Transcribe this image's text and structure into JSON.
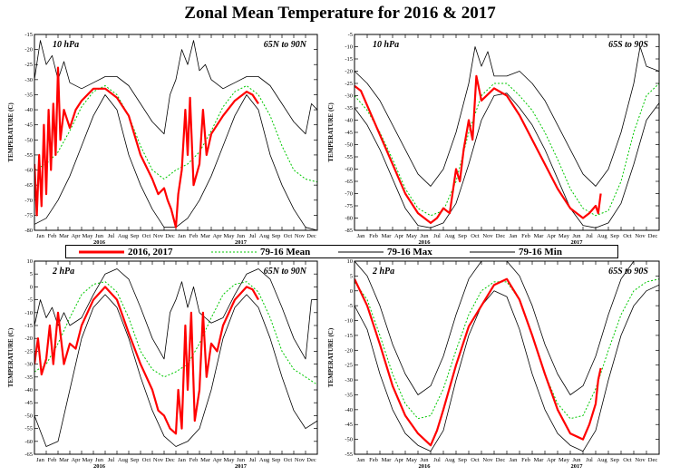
{
  "title": "Zonal Mean Temperature for 2016 & 2017",
  "legend": {
    "items": [
      {
        "label": "2016, 2017",
        "color": "#ff0000",
        "style": "thick"
      },
      {
        "label": "79-16 Mean",
        "color": "#00c800",
        "style": "dashed"
      },
      {
        "label": "79-16 Max",
        "color": "#000000",
        "style": "thin"
      },
      {
        "label": "79-16 Min",
        "color": "#000000",
        "style": "thin"
      }
    ]
  },
  "months": [
    "Jan",
    "Feb",
    "Mar",
    "Apr",
    "May",
    "Jun",
    "Jul",
    "Aug",
    "Sep",
    "Oct",
    "Nov",
    "Dec",
    "Jan",
    "Feb",
    "Mar",
    "Apr",
    "May",
    "Jun",
    "Jul",
    "Aug",
    "Sep",
    "Oct",
    "Nov",
    "Dec"
  ],
  "year_labels": [
    "2016",
    "2017"
  ],
  "chart_data": [
    {
      "type": "line",
      "pressure": "10 hPa",
      "region": "65N to 90N",
      "ylabel": "TEMPERATURE (C)",
      "ylim": [
        -80,
        -15
      ],
      "yticks": [
        -15,
        -20,
        -25,
        -30,
        -35,
        -40,
        -45,
        -50,
        -55,
        -60,
        -65,
        -70,
        -75,
        -80
      ],
      "xlim": [
        0,
        24
      ],
      "series": [
        {
          "name": "79-16 Mean",
          "x": [
            0,
            1,
            2,
            3,
            4,
            5,
            6,
            7,
            8,
            9,
            10,
            11,
            12,
            13,
            14,
            15,
            16,
            17,
            18,
            19,
            20,
            21,
            22,
            23,
            24
          ],
          "y": [
            -60,
            -58,
            -54,
            -47,
            -39,
            -34,
            -32,
            -35,
            -42,
            -52,
            -60,
            -63,
            -60,
            -58,
            -54,
            -47,
            -39,
            -34,
            -32,
            -35,
            -42,
            -52,
            -60,
            -63,
            -64
          ]
        },
        {
          "name": "79-16 Max",
          "x": [
            0,
            0.5,
            1,
            1.5,
            2,
            2.5,
            3,
            4,
            5,
            6,
            7,
            8,
            9,
            10,
            11,
            11.5,
            12,
            12.5,
            13,
            13.5,
            14,
            14.5,
            15,
            16,
            17,
            18,
            19,
            20,
            21,
            22,
            23,
            23.5,
            24
          ],
          "y": [
            -30,
            -17,
            -25,
            -22,
            -30,
            -24,
            -31,
            -33,
            -31,
            -29,
            -29,
            -32,
            -38,
            -44,
            -48,
            -35,
            -30,
            -20,
            -25,
            -17,
            -27,
            -25,
            -30,
            -33,
            -31,
            -29,
            -29,
            -32,
            -38,
            -44,
            -48,
            -38,
            -40
          ]
        },
        {
          "name": "79-16 Min",
          "x": [
            0,
            1,
            2,
            3,
            4,
            5,
            6,
            7,
            8,
            9,
            10,
            11,
            12,
            13,
            14,
            15,
            16,
            17,
            18,
            19,
            20,
            21,
            22,
            23,
            24
          ],
          "y": [
            -78,
            -76,
            -70,
            -62,
            -52,
            -42,
            -35,
            -40,
            -55,
            -65,
            -73,
            -79,
            -79,
            -76,
            -70,
            -62,
            -52,
            -42,
            -35,
            -40,
            -55,
            -65,
            -73,
            -79,
            -80
          ]
        },
        {
          "name": "2016, 2017",
          "x": [
            0,
            0.2,
            0.4,
            0.6,
            0.8,
            1,
            1.2,
            1.4,
            1.6,
            1.8,
            2,
            2.2,
            2.5,
            3,
            3.5,
            4,
            5,
            6,
            7,
            8,
            9,
            10,
            10.5,
            11,
            11.3,
            11.6,
            12,
            12.2,
            12.5,
            12.8,
            13,
            13.2,
            13.5,
            14,
            14.3,
            14.6,
            15,
            15.5,
            16,
            17,
            18,
            18.5,
            19
          ],
          "y": [
            -58,
            -75,
            -55,
            -72,
            -45,
            -68,
            -40,
            -60,
            -38,
            -55,
            -26,
            -50,
            -40,
            -46,
            -40,
            -37,
            -33,
            -33,
            -36,
            -42,
            -55,
            -63,
            -68,
            -66,
            -70,
            -73,
            -79,
            -68,
            -60,
            -40,
            -55,
            -36,
            -65,
            -58,
            -40,
            -55,
            -48,
            -45,
            -42,
            -37,
            -34,
            -35,
            -38
          ]
        }
      ]
    },
    {
      "type": "line",
      "pressure": "10 hPa",
      "region": "65S to 90S",
      "ylabel": "TEMPERATURE (C)",
      "ylim": [
        -85,
        -5
      ],
      "yticks": [
        -5,
        -10,
        -15,
        -20,
        -25,
        -30,
        -35,
        -40,
        -45,
        -50,
        -55,
        -60,
        -65,
        -70,
        -75,
        -80,
        -85
      ],
      "xlim": [
        0,
        24
      ],
      "series": [
        {
          "name": "79-16 Mean",
          "x": [
            0,
            1,
            2,
            3,
            4,
            5,
            6,
            7,
            8,
            9,
            10,
            11,
            12,
            13,
            14,
            15,
            16,
            17,
            18,
            19,
            20,
            21,
            22,
            23,
            24
          ],
          "y": [
            -30,
            -36,
            -45,
            -56,
            -68,
            -76,
            -79,
            -77,
            -65,
            -45,
            -30,
            -25,
            -25,
            -30,
            -36,
            -45,
            -56,
            -68,
            -76,
            -79,
            -77,
            -65,
            -45,
            -30,
            -25
          ]
        },
        {
          "name": "79-16 Max",
          "x": [
            0,
            1,
            2,
            3,
            4,
            5,
            6,
            7,
            8,
            9,
            9.5,
            10,
            10.5,
            11,
            12,
            13,
            14,
            15,
            16,
            17,
            18,
            19,
            20,
            21,
            22,
            22.5,
            23,
            24
          ],
          "y": [
            -20,
            -25,
            -32,
            -42,
            -52,
            -62,
            -67,
            -60,
            -45,
            -25,
            -10,
            -18,
            -12,
            -22,
            -22,
            -20,
            -25,
            -32,
            -42,
            -52,
            -62,
            -67,
            -60,
            -45,
            -25,
            -10,
            -18,
            -20
          ]
        },
        {
          "name": "79-16 Min",
          "x": [
            0,
            1,
            2,
            3,
            4,
            5,
            6,
            7,
            8,
            9,
            10,
            11,
            12,
            13,
            14,
            15,
            16,
            17,
            18,
            19,
            20,
            21,
            22,
            23,
            24
          ],
          "y": [
            -35,
            -42,
            -52,
            -64,
            -76,
            -83,
            -84,
            -82,
            -74,
            -58,
            -40,
            -30,
            -29,
            -35,
            -42,
            -52,
            -64,
            -76,
            -83,
            -84,
            -82,
            -74,
            -58,
            -40,
            -33
          ]
        },
        {
          "name": "2016, 2017",
          "x": [
            0,
            0.5,
            1,
            2,
            3,
            4,
            5,
            6,
            6.5,
            7,
            7.5,
            8,
            8.3,
            8.6,
            9,
            9.3,
            9.6,
            10,
            11,
            12,
            13,
            14,
            15,
            16,
            17,
            18,
            18.5,
            19,
            19.2,
            19.4
          ],
          "y": [
            -26,
            -28,
            -34,
            -46,
            -58,
            -70,
            -78,
            -82,
            -80,
            -76,
            -78,
            -60,
            -65,
            -52,
            -40,
            -48,
            -22,
            -32,
            -27,
            -30,
            -38,
            -48,
            -58,
            -68,
            -76,
            -80,
            -78,
            -75,
            -78,
            -70
          ]
        }
      ]
    },
    {
      "type": "line",
      "pressure": "2 hPa",
      "region": "65N to 90N",
      "ylabel": "TEMPERATURE (C)",
      "ylim": [
        -65,
        10
      ],
      "yticks": [
        10,
        5,
        0,
        -5,
        -10,
        -15,
        -20,
        -25,
        -30,
        -35,
        -40,
        -45,
        -50,
        -55,
        -60,
        -65
      ],
      "xlim": [
        0,
        24
      ],
      "series": [
        {
          "name": "79-16 Mean",
          "x": [
            0,
            1,
            2,
            3,
            4,
            5,
            6,
            7,
            8,
            9,
            10,
            11,
            12,
            13,
            14,
            15,
            16,
            17,
            18,
            19,
            20,
            21,
            22,
            23,
            24
          ],
          "y": [
            -33,
            -30,
            -22,
            -12,
            -3,
            1,
            2,
            -2,
            -12,
            -25,
            -32,
            -35,
            -33,
            -30,
            -22,
            -12,
            -3,
            1,
            2,
            -2,
            -12,
            -25,
            -32,
            -35,
            -38
          ]
        },
        {
          "name": "79-16 Max",
          "x": [
            0,
            0.5,
            1,
            1.5,
            2,
            2.5,
            3,
            4,
            5,
            6,
            7,
            8,
            9,
            10,
            11,
            11.5,
            12,
            12.5,
            13,
            13.5,
            14,
            14.5,
            15,
            16,
            17,
            18,
            19,
            20,
            21,
            22,
            23,
            23.5,
            24
          ],
          "y": [
            -15,
            -5,
            -12,
            -8,
            -15,
            -10,
            -15,
            -12,
            -3,
            5,
            7,
            3,
            -8,
            -20,
            -28,
            -10,
            -5,
            2,
            -8,
            0,
            -10,
            -12,
            -14,
            -12,
            -3,
            5,
            7,
            3,
            -8,
            -20,
            -28,
            -5,
            -5
          ]
        },
        {
          "name": "79-16 Min",
          "x": [
            0,
            1,
            2,
            3,
            4,
            5,
            6,
            7,
            8,
            9,
            10,
            11,
            12,
            13,
            14,
            15,
            16,
            17,
            18,
            19,
            20,
            21,
            22,
            23,
            24
          ],
          "y": [
            -50,
            -62,
            -60,
            -40,
            -20,
            -8,
            -3,
            -8,
            -20,
            -35,
            -48,
            -58,
            -62,
            -60,
            -55,
            -40,
            -20,
            -8,
            -3,
            -8,
            -20,
            -35,
            -48,
            -55,
            -52
          ]
        },
        {
          "name": "2016, 2017",
          "x": [
            0,
            0.3,
            0.6,
            1,
            1.3,
            1.6,
            2,
            2.5,
            3,
            3.5,
            4,
            5,
            6,
            7,
            8,
            9,
            10,
            10.5,
            11,
            11.5,
            12,
            12.2,
            12.5,
            12.8,
            13,
            13.3,
            13.6,
            14,
            14.3,
            14.6,
            15,
            15.5,
            16,
            17,
            18,
            18.5,
            19
          ],
          "y": [
            -30,
            -20,
            -34,
            -28,
            -15,
            -30,
            -10,
            -30,
            -22,
            -24,
            -15,
            -5,
            0,
            -5,
            -18,
            -30,
            -40,
            -48,
            -50,
            -55,
            -57,
            -40,
            -55,
            -15,
            -40,
            -10,
            -52,
            -40,
            -10,
            -35,
            -22,
            -25,
            -15,
            -5,
            0,
            -1,
            -5
          ]
        }
      ]
    },
    {
      "type": "line",
      "pressure": "2 hPa",
      "region": "65S to 90S",
      "ylabel": "TEMPERATURE (C)",
      "ylim": [
        -55,
        10
      ],
      "yticks": [
        10,
        5,
        0,
        -5,
        -10,
        -15,
        -20,
        -25,
        -30,
        -35,
        -40,
        -45,
        -50,
        -55
      ],
      "xlim": [
        0,
        24
      ],
      "series": [
        {
          "name": "79-16 Mean",
          "x": [
            0,
            1,
            2,
            3,
            4,
            5,
            6,
            7,
            8,
            9,
            10,
            11,
            12,
            13,
            14,
            15,
            16,
            17,
            18,
            19,
            20,
            21,
            22,
            23,
            24
          ],
          "y": [
            3,
            -3,
            -15,
            -28,
            -38,
            -43,
            -42,
            -33,
            -20,
            -8,
            0,
            3,
            3,
            -3,
            -15,
            -28,
            -38,
            -43,
            -42,
            -33,
            -20,
            -8,
            0,
            3,
            4
          ]
        },
        {
          "name": "79-16 Max",
          "x": [
            0,
            1,
            2,
            3,
            4,
            5,
            6,
            7,
            8,
            9,
            10,
            11,
            12,
            13,
            14,
            15,
            16,
            17,
            18,
            19,
            20,
            21,
            22,
            23,
            24
          ],
          "y": [
            10,
            5,
            -5,
            -18,
            -28,
            -35,
            -32,
            -22,
            -8,
            4,
            10,
            12,
            10,
            5,
            -5,
            -18,
            -28,
            -35,
            -32,
            -22,
            -8,
            4,
            10,
            12,
            12
          ]
        },
        {
          "name": "79-16 Min",
          "x": [
            0,
            1,
            2,
            3,
            4,
            5,
            6,
            7,
            8,
            9,
            10,
            11,
            12,
            13,
            14,
            15,
            16,
            17,
            18,
            19,
            20,
            21,
            22,
            23,
            24
          ],
          "y": [
            -5,
            -13,
            -28,
            -40,
            -48,
            -52,
            -54,
            -47,
            -30,
            -15,
            -5,
            0,
            -2,
            -13,
            -28,
            -40,
            -48,
            -52,
            -54,
            -47,
            -30,
            -15,
            -5,
            0,
            2
          ]
        },
        {
          "name": "2016, 2017",
          "x": [
            0,
            1,
            2,
            3,
            4,
            5,
            6,
            6.5,
            7,
            8,
            9,
            10,
            11,
            12,
            13,
            14,
            15,
            16,
            17,
            18,
            18.5,
            19,
            19.2,
            19.4
          ],
          "y": [
            4,
            -5,
            -18,
            -32,
            -42,
            -48,
            -52,
            -47,
            -40,
            -25,
            -12,
            -5,
            2,
            4,
            -3,
            -15,
            -28,
            -40,
            -48,
            -50,
            -45,
            -38,
            -30,
            -26
          ]
        }
      ]
    }
  ]
}
